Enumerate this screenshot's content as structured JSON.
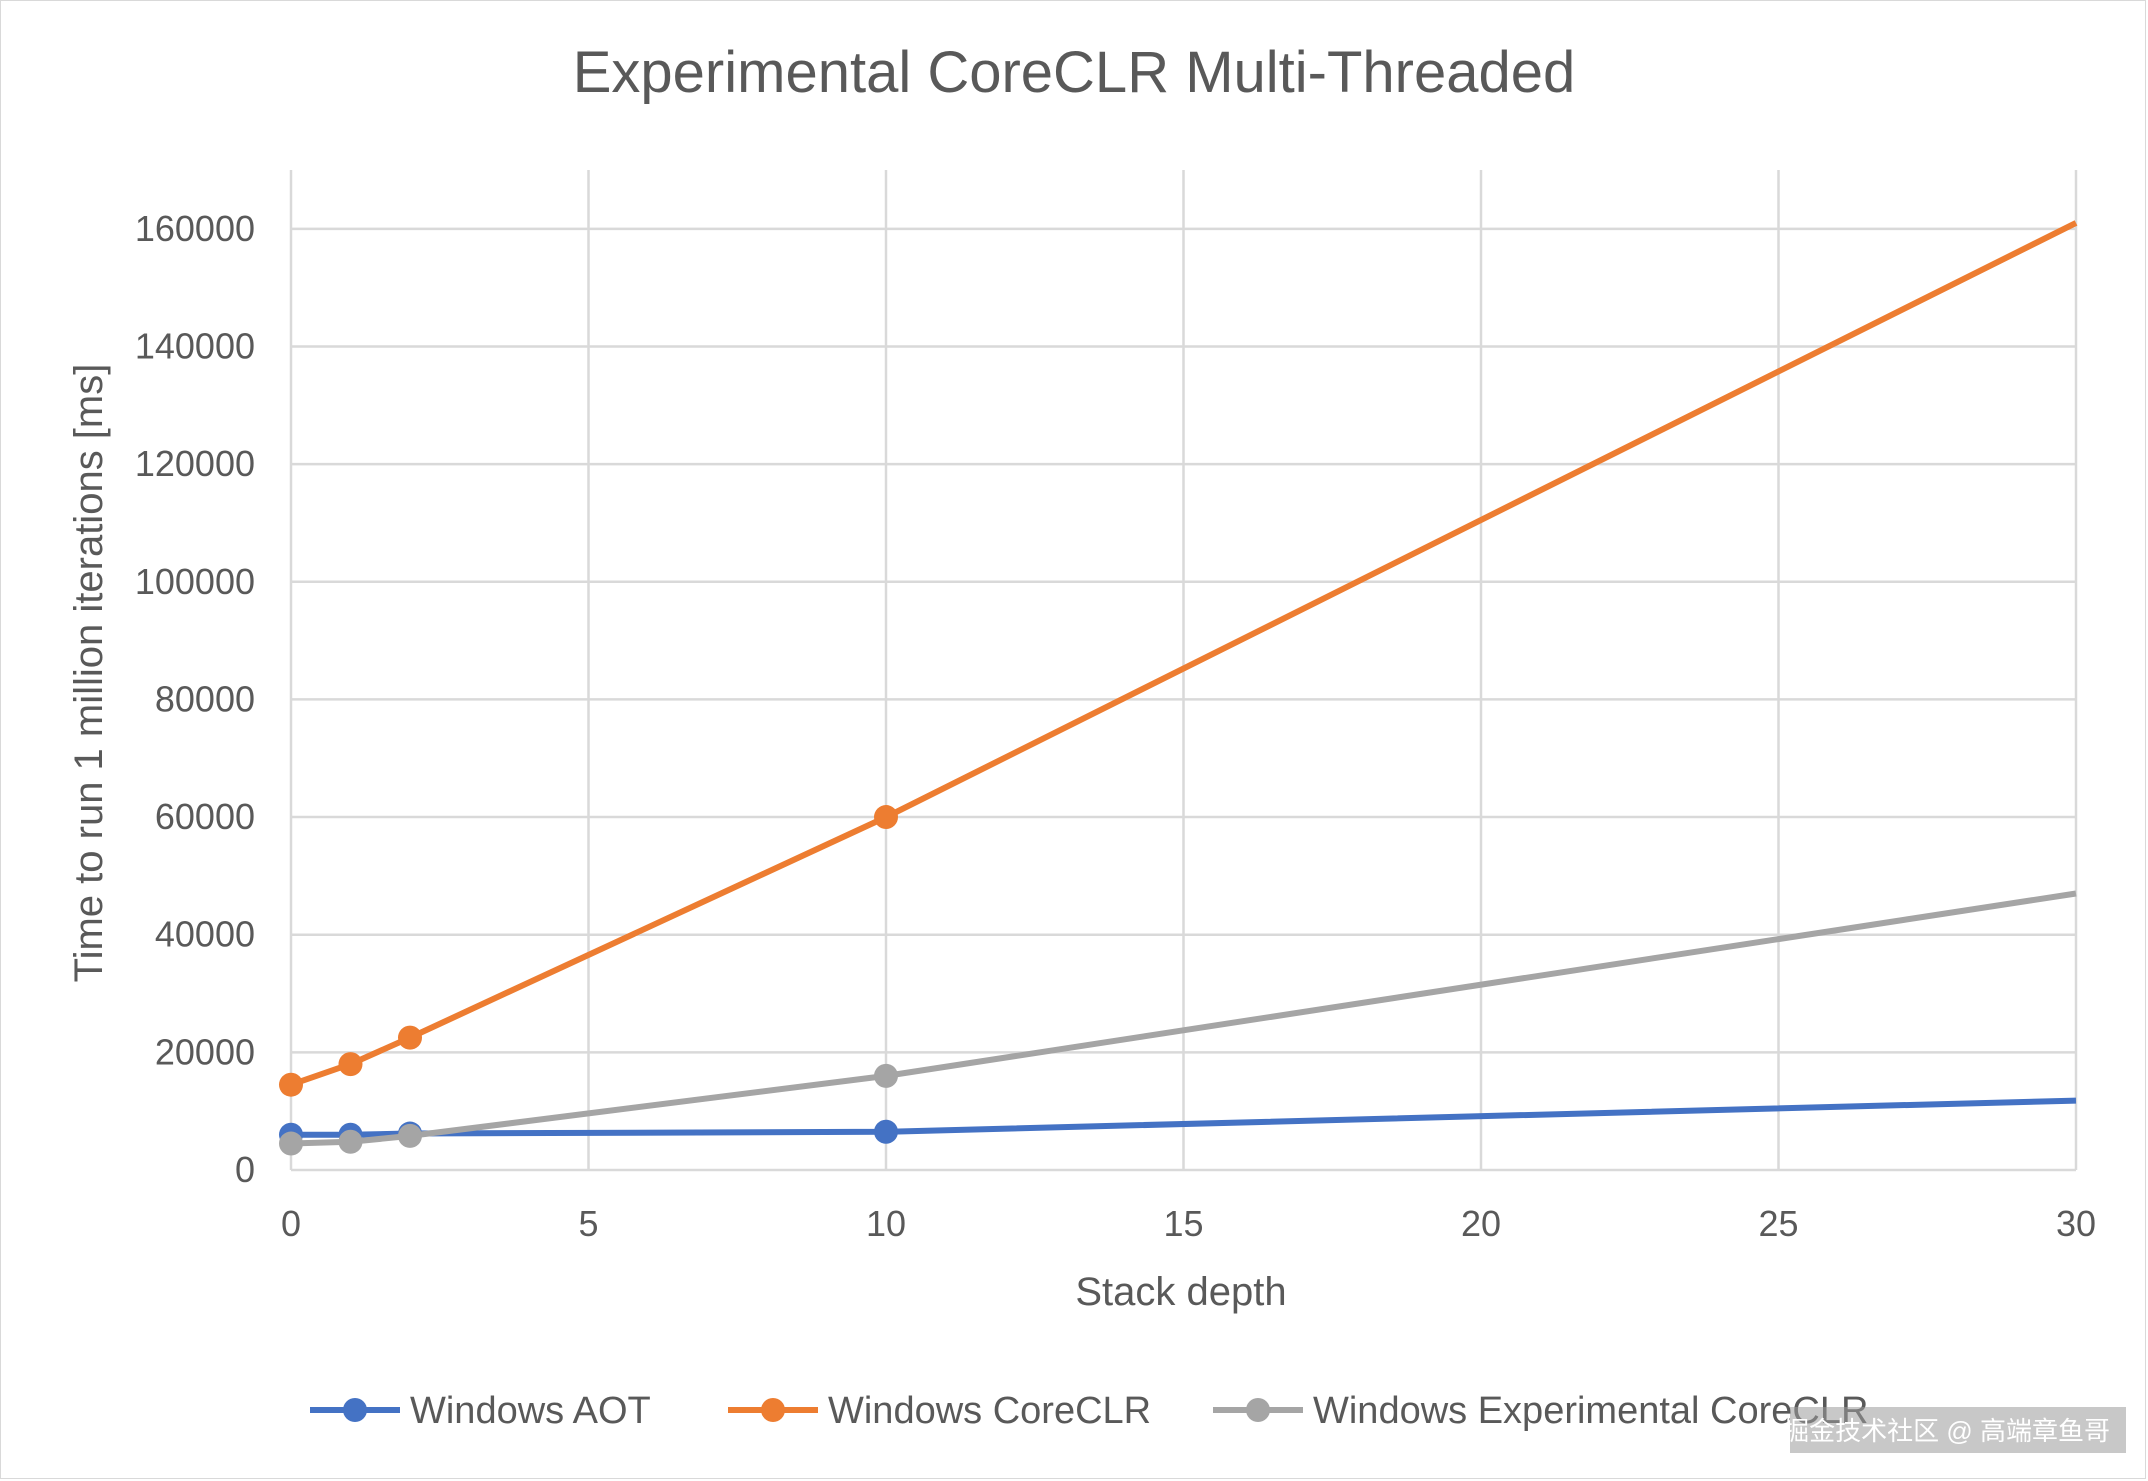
{
  "chart_data": {
    "type": "line",
    "title": "Experimental CoreCLR Multi-Threaded",
    "xlabel": "Stack depth",
    "ylabel": "Time to run 1 million iterations [ms]",
    "xlim": [
      0,
      30
    ],
    "ylim": [
      0,
      170000
    ],
    "x_ticks": [
      0,
      5,
      10,
      15,
      20,
      25,
      30
    ],
    "y_ticks": [
      0,
      20000,
      40000,
      60000,
      80000,
      100000,
      120000,
      140000,
      160000
    ],
    "grid": true,
    "legend_position": "bottom",
    "x": [
      0,
      1,
      2,
      10,
      30
    ],
    "series": [
      {
        "name": "Windows AOT",
        "color": "#4472C4",
        "values": [
          6000,
          6000,
          6200,
          6500,
          11800
        ]
      },
      {
        "name": "Windows CoreCLR",
        "color": "#ED7D31",
        "values": [
          14500,
          18000,
          22500,
          60000,
          161000
        ]
      },
      {
        "name": "Windows Experimental CoreCLR",
        "color": "#A5A5A5",
        "values": [
          4500,
          4800,
          5800,
          16000,
          47000
        ]
      }
    ],
    "marker_points_count": 4
  },
  "watermark": "掘金技术社区 @ 高端章鱼哥"
}
